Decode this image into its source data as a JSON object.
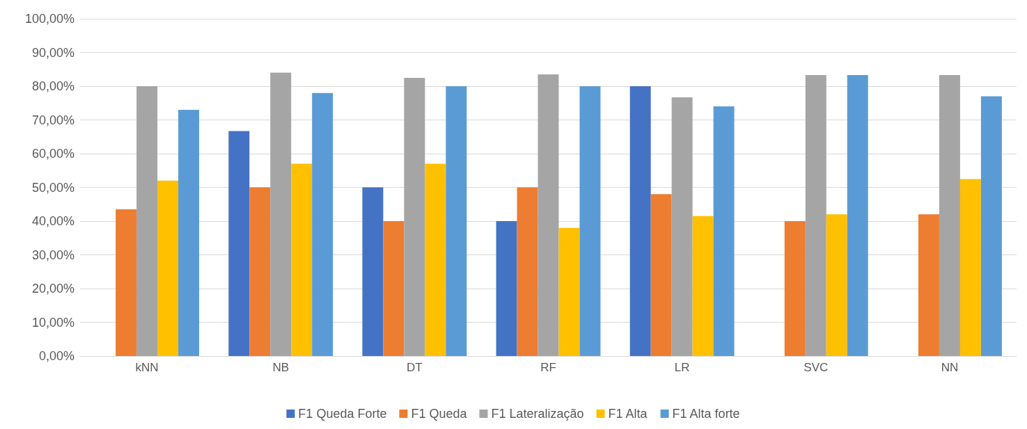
{
  "chart_data": {
    "type": "bar",
    "categories": [
      "kNN",
      "NB",
      "DT",
      "RF",
      "LR",
      "SVC",
      "NN"
    ],
    "series": [
      {
        "name": "F1 Queda Forte",
        "color": "#4472c4",
        "values": [
          0,
          66.7,
          50,
          40,
          80,
          0,
          0
        ]
      },
      {
        "name": "F1 Queda",
        "color": "#ed7d31",
        "values": [
          43.5,
          50,
          40,
          50,
          48,
          40,
          42
        ]
      },
      {
        "name": "F1 Lateralização",
        "color": "#a5a5a5",
        "values": [
          80,
          84,
          82.5,
          83.5,
          76.7,
          83.3,
          83.3
        ]
      },
      {
        "name": "F1 Alta",
        "color": "#ffc000",
        "values": [
          52,
          57,
          57,
          38,
          41.5,
          42,
          52.5
        ]
      },
      {
        "name": "F1 Alta forte",
        "color": "#5b9bd5",
        "values": [
          73,
          78,
          80,
          80,
          74,
          83.3,
          77
        ]
      }
    ],
    "ylim": [
      0,
      100
    ],
    "yticks": [
      {
        "value": 0,
        "label": "0,00%"
      },
      {
        "value": 10,
        "label": "10,00%"
      },
      {
        "value": 20,
        "label": "20,00%"
      },
      {
        "value": 30,
        "label": "30,00%"
      },
      {
        "value": 40,
        "label": "40,00%"
      },
      {
        "value": 50,
        "label": "50,00%"
      },
      {
        "value": 60,
        "label": "60,00%"
      },
      {
        "value": 70,
        "label": "70,00%"
      },
      {
        "value": 80,
        "label": "80,00%"
      },
      {
        "value": 90,
        "label": "90,00%"
      },
      {
        "value": 100,
        "label": "100,00%"
      }
    ],
    "grid": "y",
    "legend": "bottom"
  }
}
